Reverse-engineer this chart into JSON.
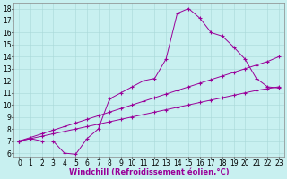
{
  "xlabel": "Windchill (Refroidissement éolien,°C)",
  "ylabel": "",
  "bg_color": "#c8f0f0",
  "line_color": "#990099",
  "marker": "+",
  "xlim": [
    -0.5,
    23.5
  ],
  "ylim": [
    5.7,
    18.5
  ],
  "xticks": [
    0,
    1,
    2,
    3,
    4,
    5,
    6,
    7,
    8,
    9,
    10,
    11,
    12,
    13,
    14,
    15,
    16,
    17,
    18,
    19,
    20,
    21,
    22,
    23
  ],
  "yticks": [
    6,
    7,
    8,
    9,
    10,
    11,
    12,
    13,
    14,
    15,
    16,
    17,
    18
  ],
  "line1_x": [
    0,
    1,
    2,
    3,
    4,
    5,
    6,
    7,
    8,
    9,
    10,
    11,
    12,
    13,
    14,
    15,
    16,
    17,
    18,
    19,
    20,
    21,
    22,
    23
  ],
  "line1_y": [
    7.0,
    7.2,
    7.0,
    7.0,
    6.0,
    5.9,
    7.2,
    8.0,
    10.5,
    11.0,
    11.5,
    12.0,
    12.2,
    13.8,
    17.6,
    18.0,
    17.2,
    16.0,
    15.7,
    14.8,
    13.8,
    12.2,
    11.5,
    11.4
  ],
  "line2_x": [
    0,
    1,
    2,
    3,
    4,
    5,
    6,
    7,
    8,
    9,
    10,
    11,
    12,
    13,
    14,
    15,
    16,
    17,
    18,
    19,
    20,
    21,
    22,
    23
  ],
  "line2_y": [
    7.0,
    7.3,
    7.6,
    7.9,
    8.2,
    8.5,
    8.8,
    9.1,
    9.4,
    9.7,
    10.0,
    10.3,
    10.6,
    10.9,
    11.2,
    11.5,
    11.8,
    12.1,
    12.4,
    12.7,
    13.0,
    13.3,
    13.6,
    14.0
  ],
  "line3_x": [
    0,
    1,
    2,
    3,
    4,
    5,
    6,
    7,
    8,
    9,
    10,
    11,
    12,
    13,
    14,
    15,
    16,
    17,
    18,
    19,
    20,
    21,
    22,
    23
  ],
  "line3_y": [
    7.0,
    7.2,
    7.4,
    7.6,
    7.8,
    8.0,
    8.2,
    8.4,
    8.6,
    8.8,
    9.0,
    9.2,
    9.4,
    9.6,
    9.8,
    10.0,
    10.2,
    10.4,
    10.6,
    10.8,
    11.0,
    11.2,
    11.35,
    11.5
  ],
  "grid_color": "#a8d8d8",
  "tick_fontsize": 5.5,
  "label_fontsize": 6.0
}
